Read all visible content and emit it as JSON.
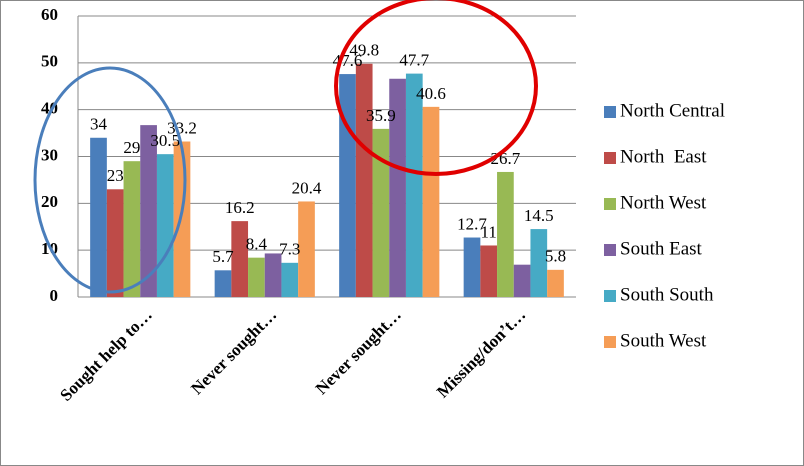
{
  "chart_data": {
    "type": "bar",
    "categories": [
      "Sought help to…",
      "Never sought…",
      "Never sought…",
      "Missing/don’t…"
    ],
    "series": [
      {
        "name": "North Central",
        "color": "#4a7ebb",
        "values": [
          34,
          5.7,
          47.6,
          12.7
        ],
        "data_labels": true
      },
      {
        "name": "North  East",
        "color": "#be4b48",
        "values": [
          23,
          16.2,
          49.8,
          11
        ],
        "data_labels": true
      },
      {
        "name": "North West",
        "color": "#98b954",
        "values": [
          29,
          8.4,
          35.9,
          26.7
        ],
        "data_labels": true
      },
      {
        "name": "South East",
        "color": "#7d60a0",
        "values": [
          36.7,
          9.3,
          46.6,
          6.9
        ],
        "data_labels": false
      },
      {
        "name": "South South",
        "color": "#46aac5",
        "values": [
          30.5,
          7.3,
          47.7,
          14.5
        ],
        "data_labels": true
      },
      {
        "name": "South West",
        "color": "#f59d56",
        "values": [
          33.2,
          20.4,
          40.6,
          5.8
        ],
        "data_labels": true
      }
    ],
    "ylim": [
      0,
      60
    ],
    "yticks": [
      0,
      10,
      20,
      30,
      40,
      50,
      60
    ],
    "grid": true,
    "legend": "right"
  }
}
